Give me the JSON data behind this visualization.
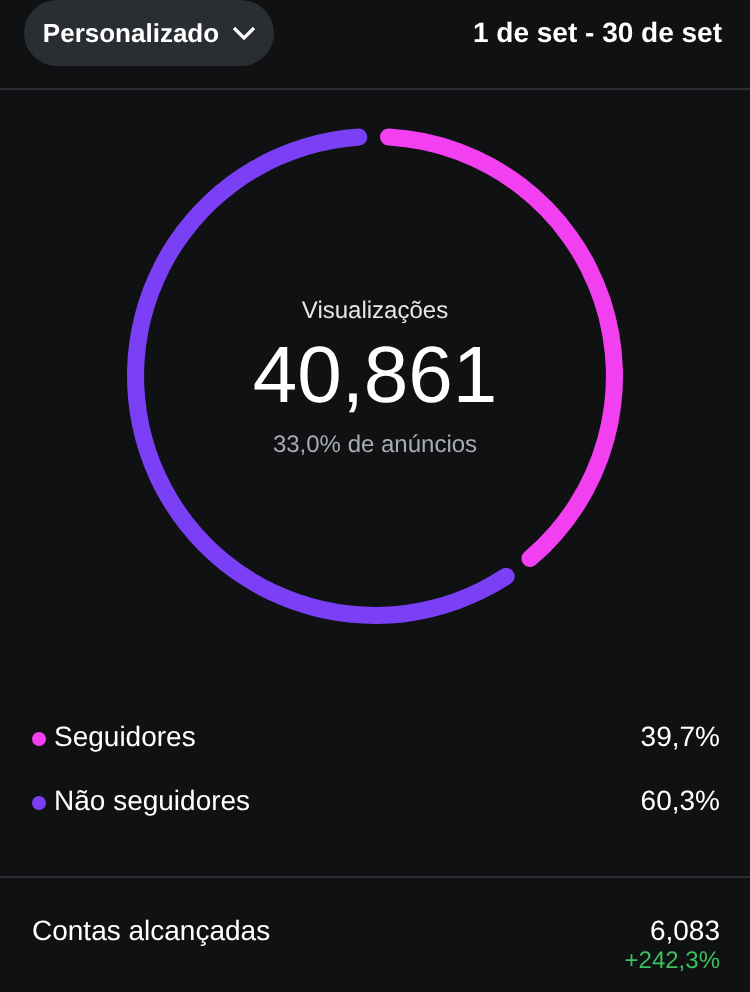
{
  "chart_data": {
    "type": "donut",
    "title": "Visualizações",
    "subtitle": "33,0% de anúncios",
    "categories": [
      "Seguidores",
      "Não seguidores"
    ],
    "values": [
      39.7,
      60.3
    ],
    "colors": [
      "#f23ff0",
      "#7b3ff6"
    ],
    "value_labels": [
      "39,7%",
      "60,3%"
    ],
    "legend": "bottom",
    "annotations": [
      "40,861",
      "Personalizado",
      "1 de set - 30 de set",
      "Contas alcançadas",
      "6,083",
      "+242,3%"
    ]
  }
}
